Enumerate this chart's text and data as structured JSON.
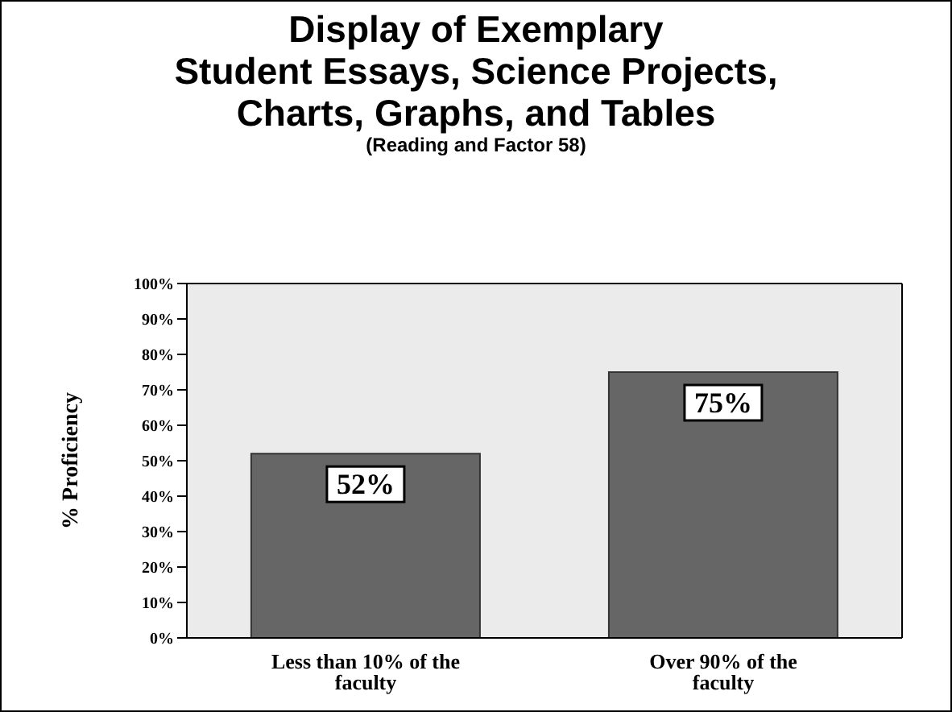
{
  "chart_data": {
    "type": "bar",
    "title": "Display of Exemplary\nStudent Essays, Science Projects,\nCharts, Graphs, and Tables",
    "subtitle": "(Reading and Factor 58)",
    "ylabel": "% Proficiency",
    "categories": [
      "Less than 10% of the faculty",
      "Over 90% of the faculty"
    ],
    "values": [
      52,
      75
    ],
    "color": "#666666",
    "value_labels": [
      "52%",
      "75%"
    ],
    "ylim": [
      0,
      100
    ],
    "yticks": [
      {
        "value": 0,
        "label": "0%"
      },
      {
        "value": 10,
        "label": "10%"
      },
      {
        "value": 20,
        "label": "20%"
      },
      {
        "value": 30,
        "label": "30%"
      },
      {
        "value": 40,
        "label": "40%"
      },
      {
        "value": 50,
        "label": "50%"
      },
      {
        "value": 60,
        "label": "60%"
      },
      {
        "value": 70,
        "label": "70%"
      },
      {
        "value": 80,
        "label": "80%"
      },
      {
        "value": 90,
        "label": "90%"
      },
      {
        "value": 100,
        "label": "100%"
      }
    ],
    "grid": false
  }
}
